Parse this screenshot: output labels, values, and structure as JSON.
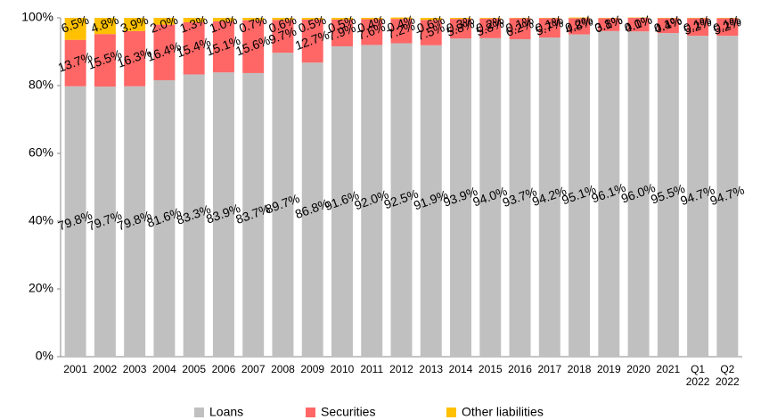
{
  "chart_data": {
    "type": "stacked_bar_100",
    "categories": [
      "2001",
      "2002",
      "2003",
      "2004",
      "2005",
      "2006",
      "2007",
      "2008",
      "2009",
      "2010",
      "2011",
      "2012",
      "2013",
      "2014",
      "2015",
      "2016",
      "2017",
      "2018",
      "2019",
      "2020",
      "2021",
      "Q1\n2022",
      "Q2\n2022"
    ],
    "series": [
      {
        "name": "Loans",
        "color": "#c0c0c0",
        "values": [
          79.8,
          79.7,
          79.8,
          81.6,
          83.3,
          83.9,
          83.7,
          89.7,
          86.8,
          91.6,
          92.0,
          92.5,
          91.9,
          93.9,
          94.0,
          93.7,
          94.2,
          95.1,
          96.1,
          96.0,
          95.5,
          94.7,
          94.7
        ],
        "value_labels": [
          "79.8%",
          "79.7%",
          "79.8%",
          "81.6%",
          "83.3%",
          "83.9%",
          "83.7%",
          "89.7%",
          "86.8%",
          "91.6%",
          "92.0%",
          "92.5%",
          "91.9%",
          "93.9%",
          "94.0%",
          "93.7%",
          "94.2%",
          "95.1%",
          "96.1%",
          "96.0%",
          "95.5%",
          "94.7%",
          "94.7%"
        ]
      },
      {
        "name": "Securities",
        "color": "#ff6666",
        "values": [
          13.7,
          15.5,
          16.3,
          16.4,
          15.4,
          15.1,
          15.6,
          9.7,
          12.7,
          7.9,
          7.6,
          7.2,
          7.5,
          5.8,
          5.8,
          6.2,
          5.7,
          4.8,
          3.8,
          4.0,
          4.4,
          5.2,
          5.2
        ],
        "value_labels": [
          "13.7%",
          "15.5%",
          "16.3%",
          "16.4%",
          "15.4%",
          "15.1%",
          "15.6%",
          "9.7%",
          "12.7%",
          "7.9%",
          "7.6%",
          "7.2%",
          "7.5%",
          "5.8%",
          "5.8%",
          "6.2%",
          "5.7%",
          "4.8%",
          "3.8%",
          "4.0%",
          "4.4%",
          "5.2%",
          "5.2%"
        ]
      },
      {
        "name": "Other liabilities",
        "color": "#ffc000",
        "values": [
          6.5,
          4.8,
          3.9,
          2.0,
          1.3,
          1.0,
          0.7,
          0.6,
          0.5,
          0.5,
          0.4,
          0.4,
          0.6,
          0.3,
          0.2,
          0.1,
          0.1,
          0.2,
          0.1,
          0.1,
          0.1,
          0.1,
          0.1
        ],
        "value_labels": [
          "6.5%",
          "4.8%",
          "3.9%",
          "2.0%",
          "1.3%",
          "1.0%",
          "0.7%",
          "0.6%",
          "0.5%",
          "0.5%",
          "0.4%",
          "0.4%",
          "0.6%",
          "0.3%",
          "0.2%",
          "0.1%",
          "0.1%",
          "0.2%",
          "0.1%",
          "0.1%",
          "0.1%",
          "0.1%",
          "0.1%"
        ]
      }
    ],
    "ylim": [
      0,
      100
    ],
    "yticks": [
      {
        "value": 0,
        "label": "0%"
      },
      {
        "value": 20,
        "label": "20%"
      },
      {
        "value": 40,
        "label": "40%"
      },
      {
        "value": 60,
        "label": "60%"
      },
      {
        "value": 80,
        "label": "80%"
      },
      {
        "value": 100,
        "label": "100%"
      }
    ],
    "legend": "bottom"
  }
}
